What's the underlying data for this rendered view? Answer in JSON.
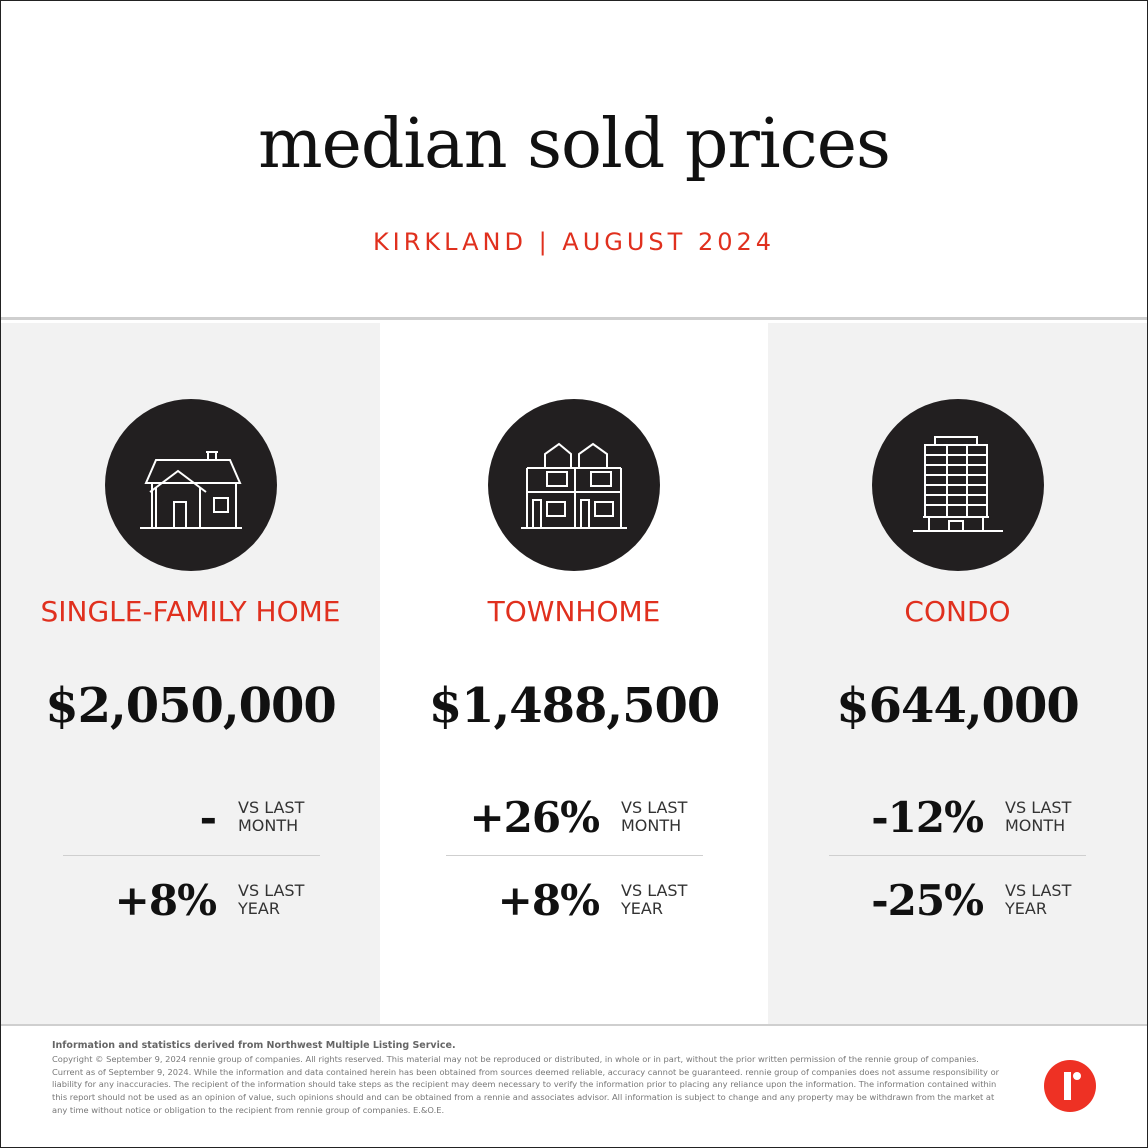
{
  "header": {
    "title": "median sold prices",
    "subtitle": "KIRKLAND | AUGUST 2024"
  },
  "accent_color": "#e0301e",
  "columns": [
    {
      "icon": "house-icon",
      "label": "SINGLE-FAMILY HOME",
      "price": "$2,050,000",
      "month_change": "-",
      "month_label": "VS LAST MONTH",
      "year_change": "+8%",
      "year_label": "VS LAST YEAR"
    },
    {
      "icon": "townhome-icon",
      "label": "TOWNHOME",
      "price": "$1,488,500",
      "month_change": "+26%",
      "month_label": "VS LAST MONTH",
      "year_change": "+8%",
      "year_label": "VS LAST YEAR"
    },
    {
      "icon": "condo-building-icon",
      "label": "CONDO",
      "price": "$644,000",
      "month_change": "-12%",
      "month_label": "VS LAST MONTH",
      "year_change": "-25%",
      "year_label": "VS LAST YEAR"
    }
  ],
  "footer": {
    "source": "Information and statistics derived from Northwest Multiple Listing Service.",
    "disclaimer": "Copyright © September 9, 2024 rennie group of companies. All rights reserved. This material may not be reproduced or distributed, in whole or in part, without the prior written permission of the rennie group of companies. Current as of September 9, 2024. While the information and data contained herein has been obtained from sources deemed reliable, accuracy cannot be guaranteed. rennie group of companies does not assume responsibility or liability for any inaccuracies. The recipient of the information should take steps as the recipient may deem necessary to verify the information prior to placing any reliance upon the information. The information contained within this report should not be used as an opinion of value, such opinions should and can be obtained from a rennie and associates advisor. All information is subject to change and any property may be withdrawn from the market at any time without notice or obligation to the recipient from rennie group of companies. E.&O.E.",
    "logo": "rennie"
  }
}
